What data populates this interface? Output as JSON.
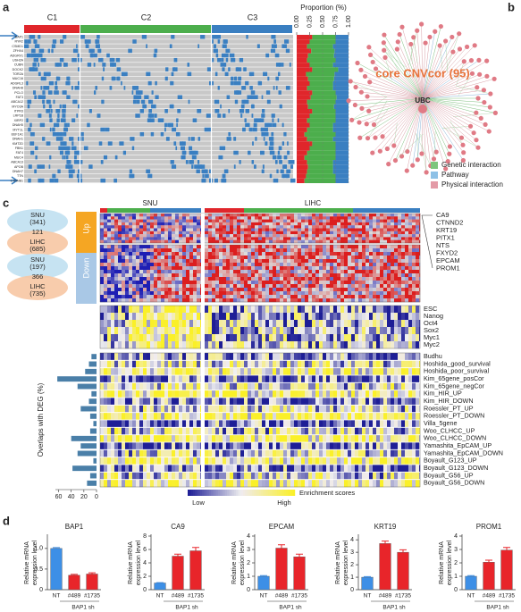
{
  "figure": {
    "panel_labels": [
      "a",
      "b",
      "c",
      "d"
    ],
    "a": {
      "clusters": [
        "C1",
        "C2",
        "C3"
      ]
    },
    "b": {
      "title": "core CNVcor (95)",
      "hub": "UBC",
      "legend": [
        "Genetic interaction",
        "Pathway",
        "Physical interaction"
      ]
    },
    "c": {
      "cohorts": [
        "SNU",
        "LIHC"
      ],
      "up": "Up",
      "down": "Down",
      "venn_up": [
        "SNU",
        "(341)",
        "121",
        "LIHC",
        "(685)"
      ],
      "venn_down": [
        "SNU",
        "(197)",
        "366",
        "LIHC",
        "(735)"
      ],
      "genes": [
        "CA9",
        "CTNND2",
        "KRT19",
        "PITX1",
        "NTS",
        "FXYD2",
        "EPCAM",
        "PROM1"
      ],
      "stem": [
        "ESC",
        "Nanog",
        "Oct4",
        "Sox2",
        "Myc1",
        "Myc2"
      ],
      "scale": {
        "low": "Low",
        "high": "High",
        "title": "Enrichment scores"
      }
    }
  },
  "chart_data": [
    {
      "type": "stacked_bar",
      "x_label": "Proportion (%)",
      "categories": [
        "BAP1",
        "RYR2",
        "CSMD1",
        "ZFHX4",
        "ADGRV1",
        "USH2A",
        "CUBN",
        "DOCK2",
        "TOR2A",
        "MUC16",
        "ADGRL3",
        "DNAH8",
        "PCLO",
        "FAT3",
        "ABCA12",
        "MYO3A",
        "ITPR3",
        "LRP1B",
        "XIRP2",
        "DNAH5",
        "MYT1L",
        "EEF1A1",
        "DNAH1",
        "KMT2D",
        "FBN1",
        "FAT4",
        "MUC4",
        "ABCA13",
        "APOB",
        "DNAH7",
        "TTN",
        "CTNNB1"
      ],
      "series": [
        {
          "name": "C1",
          "color": "#e0262b",
          "values": [
            0.3,
            0.25,
            0.2,
            0.28,
            0.22,
            0.2,
            0.25,
            0.3,
            0.18,
            0.22,
            0.25,
            0.2,
            0.3,
            0.27,
            0.2,
            0.22,
            0.3,
            0.25,
            0.2,
            0.25,
            0.2,
            0.15,
            0.2,
            0.3,
            0.25,
            0.2,
            0.15,
            0.2,
            0.22,
            0.2,
            0.18,
            0.15
          ]
        },
        {
          "name": "C2",
          "color": "#4cae4c",
          "values": [
            0.45,
            0.5,
            0.5,
            0.45,
            0.5,
            0.55,
            0.45,
            0.5,
            0.55,
            0.5,
            0.45,
            0.5,
            0.45,
            0.5,
            0.55,
            0.5,
            0.45,
            0.5,
            0.55,
            0.45,
            0.5,
            0.6,
            0.5,
            0.45,
            0.5,
            0.55,
            0.6,
            0.5,
            0.48,
            0.5,
            0.57,
            0.6
          ]
        },
        {
          "name": "C3",
          "color": "#3a7fc1",
          "values": [
            0.25,
            0.25,
            0.3,
            0.27,
            0.28,
            0.25,
            0.3,
            0.2,
            0.27,
            0.28,
            0.3,
            0.3,
            0.25,
            0.23,
            0.25,
            0.28,
            0.25,
            0.25,
            0.25,
            0.3,
            0.3,
            0.25,
            0.3,
            0.25,
            0.25,
            0.25,
            0.25,
            0.3,
            0.3,
            0.3,
            0.25,
            0.25
          ]
        }
      ],
      "xlim": [
        0,
        1
      ],
      "xticks": [
        {
          "value": 0,
          "label": "0.00"
        },
        {
          "value": 0.25,
          "label": "0.25"
        },
        {
          "value": 0.5,
          "label": "0.50"
        },
        {
          "value": 0.75,
          "label": "0.75"
        },
        {
          "value": 1,
          "label": "1.00"
        }
      ]
    },
    {
      "type": "hbar",
      "x_label": "Overlaps with DEG (%)",
      "color": "#4a7fa8",
      "categories": [
        "Budhu",
        "Hoshida_good_survival",
        "Hoshida_poor_survival",
        "Kim_65gene_posCor",
        "Kim_65gene_negCor",
        "Kim_HIR_UP",
        "Kim_HIR_DOWN",
        "Roessler_PT_UP",
        "Roessler_PT_DOWN",
        "Villa_5gene",
        "Woo_CLHCC_UP",
        "Woo_CLHCC_DOWN",
        "Yamashita_EpCAM_UP",
        "Yamashita_EpCAM_DOWN",
        "Boyault_G123_UP",
        "Boyault_G123_DOWN",
        "Boyault_G56_UP",
        "Boyault_G56_DOWN"
      ],
      "values": [
        8,
        12,
        18,
        62,
        30,
        8,
        12,
        25,
        10,
        5,
        10,
        40,
        25,
        30,
        5,
        38,
        10,
        15
      ],
      "xlim": [
        0,
        65
      ],
      "xticks": [
        60,
        40,
        20,
        0
      ]
    },
    {
      "type": "bar",
      "title": "BAP1",
      "y_label": [
        "Relative mRNA",
        "expression level"
      ],
      "group_label": "BAP1 sh",
      "categories": [
        "NT",
        "#489",
        "#1735"
      ],
      "colors": [
        "#3d8fe6",
        "#e8252a",
        "#e8252a"
      ],
      "values": [
        1.0,
        0.35,
        0.38
      ],
      "errors": [
        0.02,
        0.02,
        0.03
      ],
      "ylim": [
        0,
        1.3
      ],
      "yticks": [
        0,
        0.5,
        {
          "value": 1,
          "label": "1.0"
        }
      ]
    },
    {
      "type": "bar",
      "title": "CA9",
      "y_label": [
        "Relative mRNA",
        "expression level"
      ],
      "group_label": "BAP1 sh",
      "categories": [
        "NT",
        "#489",
        "#1735"
      ],
      "colors": [
        "#3d8fe6",
        "#e8252a",
        "#e8252a"
      ],
      "values": [
        1.0,
        5.0,
        5.8
      ],
      "errors": [
        0.05,
        0.3,
        0.5
      ],
      "ylim": [
        0,
        8
      ],
      "yticks": [
        0,
        2,
        4,
        6,
        8
      ]
    },
    {
      "type": "bar",
      "title": "EPCAM",
      "y_label": [
        "Relative mRNA",
        "expression level"
      ],
      "group_label": "BAP1 sh",
      "categories": [
        "NT",
        "#489",
        "#1735"
      ],
      "colors": [
        "#3d8fe6",
        "#e8252a",
        "#e8252a"
      ],
      "values": [
        1.0,
        3.1,
        2.45
      ],
      "errors": [
        0.05,
        0.25,
        0.2
      ],
      "ylim": [
        0,
        4
      ],
      "yticks": [
        0,
        1,
        2,
        3,
        4
      ]
    },
    {
      "type": "bar",
      "title": "KRT19",
      "y_label": [
        "Relative mRNA",
        "expression level"
      ],
      "group_label": "BAP1 sh",
      "categories": [
        "NT",
        "#489",
        "#1735"
      ],
      "colors": [
        "#3d8fe6",
        "#e8252a",
        "#e8252a"
      ],
      "values": [
        1.0,
        3.7,
        3.0
      ],
      "errors": [
        0.05,
        0.2,
        0.2
      ],
      "ylim": [
        0,
        4.3
      ],
      "yticks": [
        0,
        1,
        2,
        3,
        4
      ]
    },
    {
      "type": "bar",
      "title": "PROM1",
      "y_label": [
        "Relative mRNA",
        "expression level"
      ],
      "group_label": "BAP1 sh",
      "categories": [
        "NT",
        "#489",
        "#1735"
      ],
      "colors": [
        "#3d8fe6",
        "#e8252a",
        "#e8252a"
      ],
      "values": [
        1.0,
        2.05,
        2.95
      ],
      "errors": [
        0.05,
        0.15,
        0.2
      ],
      "ylim": [
        0,
        4
      ],
      "yticks": [
        0,
        1,
        2,
        3,
        4
      ]
    }
  ]
}
